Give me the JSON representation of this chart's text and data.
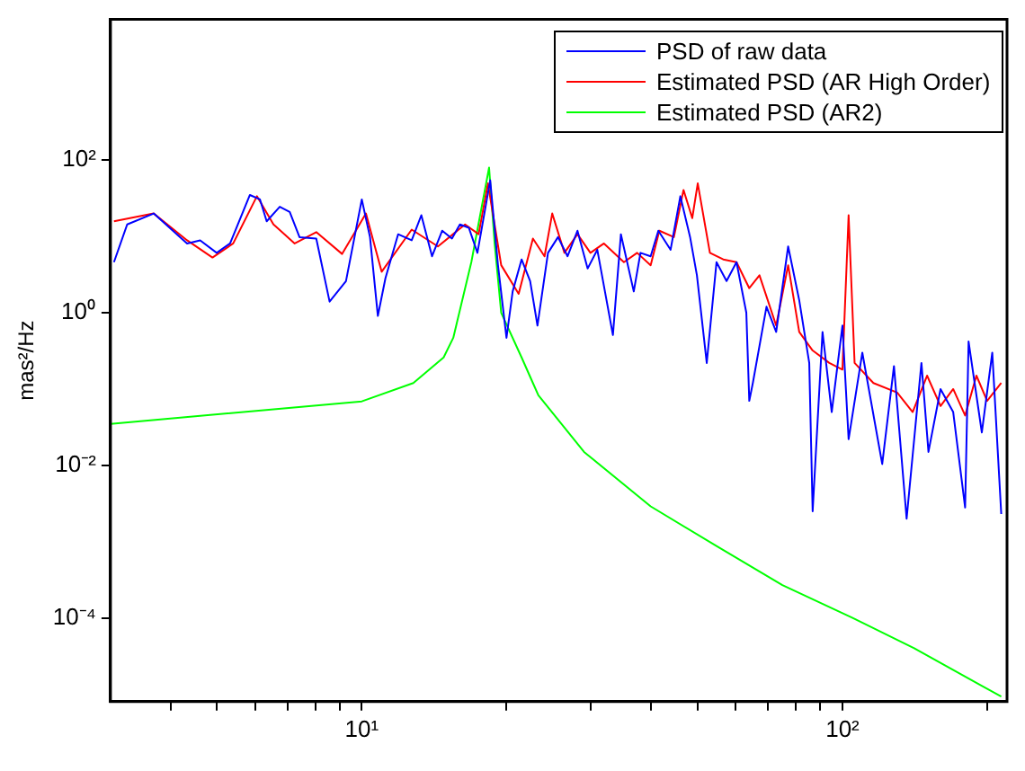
{
  "chart_data": {
    "type": "line",
    "ylabel": "mas²/Hz",
    "log": "xy",
    "grid": false,
    "legend": "top right",
    "marker": "none",
    "line_style": "solid",
    "xlim": [
      3,
      220
    ],
    "ylim": [
      8e-06,
      7000
    ],
    "xticks": [
      {
        "value": 4,
        "label": null
      },
      {
        "value": 5,
        "label": null
      },
      {
        "value": 6,
        "label": null
      },
      {
        "value": 7,
        "label": null
      },
      {
        "value": 8,
        "label": null
      },
      {
        "value": 9,
        "label": null
      },
      {
        "value": 10,
        "label": "10¹"
      },
      {
        "value": 20,
        "label": null
      },
      {
        "value": 30,
        "label": null
      },
      {
        "value": 40,
        "label": null
      },
      {
        "value": 50,
        "label": null
      },
      {
        "value": 60,
        "label": null
      },
      {
        "value": 70,
        "label": null
      },
      {
        "value": 80,
        "label": null
      },
      {
        "value": 90,
        "label": null
      },
      {
        "value": 100,
        "label": "10²"
      },
      {
        "value": 200,
        "label": null
      }
    ],
    "yticks": [
      {
        "value": 0.0001,
        "label": "10⁻⁴"
      },
      {
        "value": 0.01,
        "label": "10⁻²"
      },
      {
        "value": 1,
        "label": "10⁰"
      },
      {
        "value": 100,
        "label": "10²"
      }
    ],
    "series": [
      {
        "name": "PSD of raw data",
        "color": "#0000ff",
        "x": [
          3.05,
          3.25,
          3.69,
          4.33,
          4.61,
          4.99,
          5.32,
          5.85,
          6.14,
          6.34,
          6.75,
          7.08,
          7.42,
          8.04,
          8.57,
          9.27,
          10,
          10.4,
          10.8,
          11.2,
          11.9,
          12.7,
          13.3,
          14,
          14.7,
          15.4,
          16,
          16.7,
          17.4,
          18.5,
          19.2,
          20,
          20.6,
          21.5,
          22.4,
          23.2,
          24.4,
          25.6,
          26.8,
          28.1,
          29.5,
          30.9,
          33.3,
          34.6,
          36.8,
          38,
          39.9,
          41.4,
          43.9,
          46,
          48.2,
          49.8,
          52.2,
          54.7,
          57.4,
          60.2,
          63.1,
          64,
          65.1,
          69.5,
          72.8,
          77.1,
          81.3,
          85.3,
          86.7,
          90.9,
          95,
          100,
          103,
          110,
          121,
          128,
          136,
          146,
          151,
          160,
          170,
          180,
          183,
          195,
          205,
          214
        ],
        "values": [
          4.6,
          14.4,
          20,
          8.1,
          8.9,
          6.1,
          8.1,
          35,
          30.6,
          15.8,
          24.5,
          21,
          9.8,
          9.4,
          1.4,
          2.6,
          30.6,
          9.8,
          0.91,
          2.85,
          10.7,
          8.9,
          19,
          5.5,
          11.9,
          9.4,
          14.4,
          13,
          6.1,
          54.5,
          4.2,
          0.47,
          1.9,
          5,
          2.6,
          0.68,
          6.1,
          9.8,
          5.5,
          11.9,
          3.8,
          6.7,
          0.51,
          10.7,
          1.9,
          6.1,
          5.5,
          11.9,
          6.7,
          33.7,
          9.8,
          3.1,
          0.22,
          4.6,
          2.6,
          4.6,
          1,
          0.07,
          0.12,
          1.2,
          0.56,
          7.4,
          1.46,
          0.22,
          0.0025,
          0.56,
          0.05,
          0.68,
          0.022,
          0.3,
          0.0104,
          0.2,
          0.002,
          0.22,
          0.015,
          0.1,
          0.05,
          0.0028,
          0.42,
          0.027,
          0.3,
          0.0023
        ]
      },
      {
        "name": "Estimated PSD (AR High Order)",
        "color": "#ff0000",
        "x": [
          3.05,
          3.69,
          4.33,
          4.89,
          5.4,
          6.05,
          6.55,
          7.25,
          8.04,
          9.1,
          10.2,
          11,
          12.7,
          14.4,
          16.4,
          17.5,
          18.3,
          19.5,
          21.2,
          22.7,
          24,
          24.9,
          26.4,
          28.1,
          29.9,
          31.9,
          35.1,
          37.4,
          39.9,
          41.6,
          44.6,
          46.7,
          48.7,
          50,
          53,
          56.5,
          60.2,
          64,
          67.2,
          72.8,
          77.1,
          81.3,
          86.7,
          93.9,
          100,
          103,
          106,
          116,
          130,
          140,
          150,
          160,
          170,
          180,
          190,
          200,
          214
        ],
        "values": [
          15.8,
          20,
          8.9,
          5.3,
          8.1,
          33.7,
          14.4,
          8.1,
          11.4,
          5.9,
          20,
          3.45,
          12.3,
          7.4,
          14.4,
          10.7,
          49.6,
          4.2,
          1.77,
          9.4,
          5.5,
          20,
          6.1,
          10.7,
          6.1,
          8.1,
          4.6,
          6.1,
          4.2,
          11.9,
          9.8,
          40.7,
          17.4,
          49.6,
          6.1,
          5,
          4.6,
          2.1,
          3.1,
          0.68,
          4.2,
          0.56,
          0.32,
          0.22,
          0.18,
          19,
          0.22,
          0.12,
          0.09,
          0.05,
          0.15,
          0.06,
          0.1,
          0.045,
          0.15,
          0.07,
          0.12
        ]
      },
      {
        "name": "Estimated PSD (AR2)",
        "color": "#00ff00",
        "x": [
          3,
          10,
          12.8,
          14.8,
          15.5,
          16.9,
          18.4,
          18.9,
          19.5,
          21.5,
          22.7,
          23.3,
          29,
          39.9,
          54.8,
          75,
          105,
          141,
          214
        ],
        "values": [
          0.035,
          0.069,
          0.12,
          0.26,
          0.47,
          4.6,
          80,
          8,
          1,
          0.26,
          0.12,
          0.083,
          0.015,
          0.0029,
          0.00087,
          0.00027,
          0.0001,
          4e-05,
          9.3e-06
        ]
      }
    ]
  }
}
